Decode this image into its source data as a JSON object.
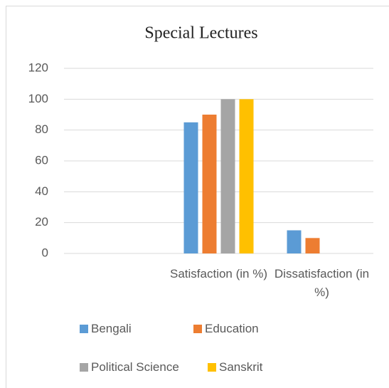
{
  "chart_data": {
    "type": "bar",
    "title": "Special Lectures",
    "categories": [
      null,
      "Satisfaction (in %)",
      "Dissatisfaction (in %)"
    ],
    "series": [
      {
        "name": "Bengali",
        "color": "#5b9bd5",
        "values": [
          null,
          85,
          15
        ]
      },
      {
        "name": "Education",
        "color": "#ed7d31",
        "values": [
          null,
          90,
          10
        ]
      },
      {
        "name": "Political Science",
        "color": "#a5a5a5",
        "values": [
          null,
          100,
          0
        ]
      },
      {
        "name": "Sanskrit",
        "color": "#ffc000",
        "values": [
          null,
          100,
          0
        ]
      }
    ],
    "ylim": [
      0,
      120
    ],
    "yticks": [
      0,
      20,
      40,
      60,
      80,
      100,
      120
    ],
    "grid": true,
    "legend": "bottom"
  }
}
